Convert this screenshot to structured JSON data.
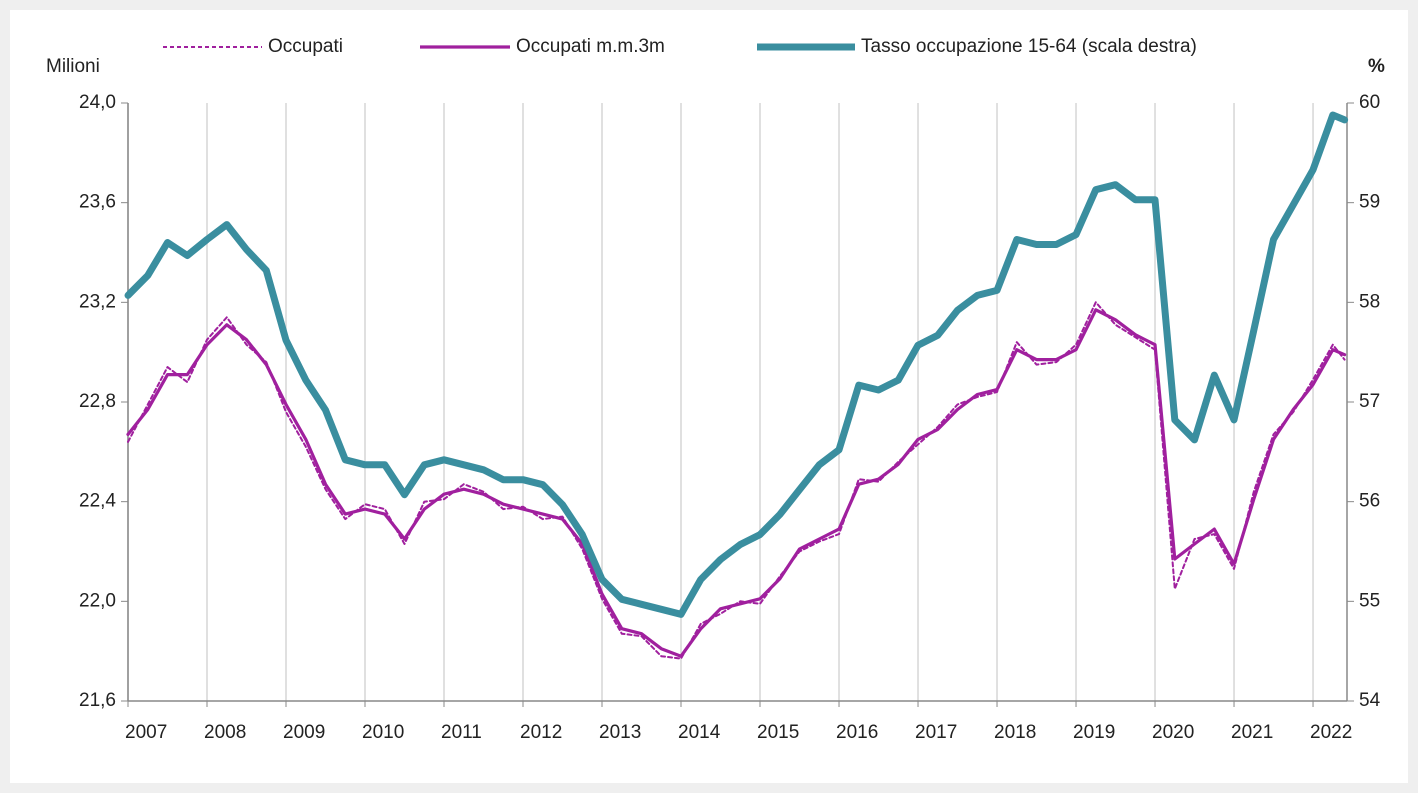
{
  "chart_data": {
    "type": "line",
    "ylabel": "Milioni",
    "y2label": "%",
    "x": [
      2007,
      2007.25,
      2007.5,
      2007.75,
      2008,
      2008.25,
      2008.5,
      2008.75,
      2009,
      2009.25,
      2009.5,
      2009.75,
      2010,
      2010.25,
      2010.5,
      2010.75,
      2011,
      2011.25,
      2011.5,
      2011.75,
      2012,
      2012.25,
      2012.5,
      2012.75,
      2013,
      2013.25,
      2013.5,
      2013.75,
      2014,
      2014.25,
      2014.5,
      2014.75,
      2015,
      2015.25,
      2015.5,
      2015.75,
      2016,
      2016.25,
      2016.5,
      2016.75,
      2017,
      2017.25,
      2017.5,
      2017.75,
      2018,
      2018.25,
      2018.5,
      2018.75,
      2019,
      2019.25,
      2019.5,
      2019.75,
      2020,
      2020.25,
      2020.5,
      2020.75,
      2021,
      2021.25,
      2021.5,
      2021.75,
      2022,
      2022.25,
      2022.4
    ],
    "xlim": [
      2007,
      2022.43
    ],
    "xticks": [
      2007,
      2008,
      2009,
      2010,
      2011,
      2012,
      2013,
      2014,
      2015,
      2016,
      2017,
      2018,
      2019,
      2020,
      2021,
      2022
    ],
    "ylim": [
      21.6,
      24.0
    ],
    "yticks": [
      {
        "value": 21.6,
        "label": "21,6"
      },
      {
        "value": 22.0,
        "label": "22,0"
      },
      {
        "value": 22.4,
        "label": "22,4"
      },
      {
        "value": 22.8,
        "label": "22,8"
      },
      {
        "value": 23.2,
        "label": "23,2"
      },
      {
        "value": 23.6,
        "label": "23,6"
      },
      {
        "value": 24.0,
        "label": "24,0"
      }
    ],
    "y2lim": [
      54,
      60
    ],
    "y2ticks": [
      54,
      55,
      56,
      57,
      58,
      59,
      60
    ],
    "grid": "x",
    "legend": "top",
    "series": [
      {
        "name": "Occupati",
        "color": "#a0209e",
        "style": "dashed",
        "values": [
          22.64,
          22.79,
          22.94,
          22.88,
          23.05,
          23.14,
          23.03,
          22.96,
          22.76,
          22.62,
          22.45,
          22.33,
          22.39,
          22.37,
          22.23,
          22.4,
          22.41,
          22.47,
          22.44,
          22.37,
          22.38,
          22.33,
          22.34,
          22.21,
          22.01,
          21.87,
          21.86,
          21.78,
          21.77,
          21.91,
          21.95,
          22.0,
          21.99,
          22.1,
          22.2,
          22.24,
          22.27,
          22.49,
          22.48,
          22.56,
          22.63,
          22.7,
          22.79,
          22.82,
          22.84,
          23.04,
          22.95,
          22.96,
          23.03,
          23.2,
          23.11,
          23.06,
          23.01,
          22.05,
          22.25,
          22.27,
          22.13,
          22.44,
          22.67,
          22.76,
          22.89,
          23.03,
          22.97
        ]
      },
      {
        "name": "Occupati m.m.3m",
        "color": "#a0209e",
        "style": "solid",
        "values": [
          22.67,
          22.77,
          22.91,
          22.91,
          23.03,
          23.11,
          23.05,
          22.95,
          22.79,
          22.65,
          22.47,
          22.35,
          22.37,
          22.35,
          22.25,
          22.37,
          22.43,
          22.45,
          22.43,
          22.39,
          22.37,
          22.35,
          22.33,
          22.23,
          22.03,
          21.89,
          21.87,
          21.81,
          21.78,
          21.89,
          21.97,
          21.99,
          22.01,
          22.09,
          22.21,
          22.25,
          22.29,
          22.47,
          22.49,
          22.55,
          22.65,
          22.69,
          22.77,
          22.83,
          22.85,
          23.01,
          22.97,
          22.97,
          23.01,
          23.17,
          23.13,
          23.07,
          23.03,
          22.17,
          22.23,
          22.29,
          22.15,
          22.41,
          22.65,
          22.77,
          22.87,
          23.01,
          22.99
        ]
      },
      {
        "name": "Tasso occupazione 15-64 (scala destra)",
        "color": "#3a8e9f",
        "style": "thick",
        "axis": "y2",
        "values": [
          58.07,
          58.27,
          58.6,
          58.47,
          58.63,
          58.78,
          58.53,
          58.32,
          57.62,
          57.22,
          56.92,
          56.42,
          56.37,
          56.37,
          56.07,
          56.37,
          56.42,
          56.37,
          56.32,
          56.22,
          56.22,
          56.17,
          55.97,
          55.67,
          55.22,
          55.02,
          54.97,
          54.92,
          54.87,
          55.22,
          55.42,
          55.57,
          55.67,
          55.87,
          56.12,
          56.37,
          56.52,
          57.17,
          57.12,
          57.22,
          57.57,
          57.67,
          57.92,
          58.07,
          58.12,
          58.63,
          58.58,
          58.58,
          58.68,
          59.13,
          59.18,
          59.03,
          59.03,
          56.82,
          56.62,
          57.27,
          56.82,
          57.72,
          58.63,
          58.98,
          59.33,
          59.88,
          59.83
        ]
      }
    ]
  }
}
